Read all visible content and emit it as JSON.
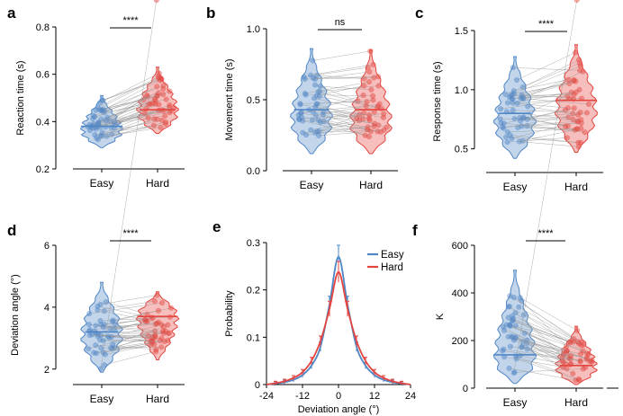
{
  "colors": {
    "easy": "#4f86c6",
    "hard": "#e4453e",
    "line": "#9a9a9a"
  },
  "chart_data": [
    {
      "letter": "a",
      "type": "violin",
      "ylabel": "Reaction time (s)",
      "ylim": [
        0.2,
        0.8
      ],
      "yticks": [
        "0.2",
        "0.4",
        "0.6",
        "0.8"
      ],
      "ytick_values": [
        0.2,
        0.4,
        0.6,
        0.8
      ],
      "categories": [
        "Easy",
        "Hard"
      ],
      "significance": "****",
      "easy": {
        "min": 0.29,
        "max": 0.51,
        "median": 0.38,
        "mode": 0.36
      },
      "hard": {
        "min": 0.35,
        "max": 0.63,
        "median": 0.45,
        "mode": 0.44
      }
    },
    {
      "letter": "b",
      "type": "violin",
      "ylabel": "Movement time (s)",
      "ylim": [
        0.0,
        1.0
      ],
      "yticks": [
        "0.0",
        "0.5",
        "1.0"
      ],
      "ytick_values": [
        0.0,
        0.5,
        1.0
      ],
      "categories": [
        "Easy",
        "Hard"
      ],
      "significance": "ns",
      "easy": {
        "min": 0.12,
        "max": 0.86,
        "median": 0.43,
        "mode": 0.35
      },
      "hard": {
        "min": 0.12,
        "max": 0.85,
        "median": 0.43,
        "mode": 0.33
      }
    },
    {
      "letter": "c",
      "type": "violin",
      "ylabel": "Response time (s)",
      "ylim": [
        0.3,
        1.5
      ],
      "yticks": [
        "0.5",
        "1.0",
        "1.5"
      ],
      "ytick_values": [
        0.5,
        1.0,
        1.5
      ],
      "categories": [
        "Easy",
        "Hard"
      ],
      "significance": "****",
      "easy": {
        "min": 0.42,
        "max": 1.28,
        "median": 0.8,
        "mode": 0.72
      },
      "hard": {
        "min": 0.47,
        "max": 1.38,
        "median": 0.91,
        "mode": 0.82
      }
    },
    {
      "letter": "d",
      "type": "violin",
      "ylabel": "Deviation angle (°)",
      "ylim": [
        1.5,
        6.0
      ],
      "yticks": [
        "2",
        "4",
        "6"
      ],
      "ytick_values": [
        2,
        4,
        6
      ],
      "categories": [
        "Easy",
        "Hard"
      ],
      "significance": "****",
      "easy": {
        "min": 1.9,
        "max": 4.8,
        "median": 3.2,
        "mode": 3.1
      },
      "hard": {
        "min": 2.3,
        "max": 4.5,
        "median": 3.7,
        "mode": 3.7
      }
    },
    {
      "letter": "e",
      "type": "line",
      "ylabel": "Probability",
      "xlabel": "Deviation angle (°)",
      "xlim": [
        -24,
        24
      ],
      "xticks": [
        "-24",
        "-12",
        "0",
        "12",
        "24"
      ],
      "xtick_values": [
        -24,
        -12,
        0,
        12,
        24
      ],
      "ylim": [
        0,
        0.3
      ],
      "yticks": [
        "0",
        "0.1",
        "0.2",
        "0.3"
      ],
      "ytick_values": [
        0,
        0.1,
        0.2,
        0.3
      ],
      "legend": [
        "Easy",
        "Hard"
      ],
      "x": [
        -24,
        -21,
        -18,
        -15,
        -12,
        -9,
        -6,
        -3,
        0,
        3,
        6,
        9,
        12,
        15,
        18,
        21,
        24
      ],
      "series": [
        {
          "name": "Easy",
          "values": [
            0.0,
            0.002,
            0.005,
            0.01,
            0.02,
            0.04,
            0.08,
            0.17,
            0.27,
            0.17,
            0.08,
            0.04,
            0.02,
            0.01,
            0.005,
            0.002,
            0.0
          ]
        },
        {
          "name": "Hard",
          "values": [
            0.0,
            0.003,
            0.007,
            0.014,
            0.026,
            0.05,
            0.092,
            0.16,
            0.238,
            0.16,
            0.092,
            0.05,
            0.026,
            0.014,
            0.007,
            0.003,
            0.0
          ]
        }
      ]
    },
    {
      "letter": "f",
      "type": "violin",
      "ylabel": "K",
      "ylim": [
        0,
        600
      ],
      "yticks": [
        "0",
        "200",
        "400",
        "600"
      ],
      "ytick_values": [
        0,
        200,
        400,
        600
      ],
      "categories": [
        "Easy",
        "Hard"
      ],
      "significance": "****",
      "easy": {
        "min": 20,
        "max": 495,
        "median": 140,
        "mode": 120
      },
      "hard": {
        "min": 15,
        "max": 260,
        "median": 95,
        "mode": 85
      }
    }
  ]
}
